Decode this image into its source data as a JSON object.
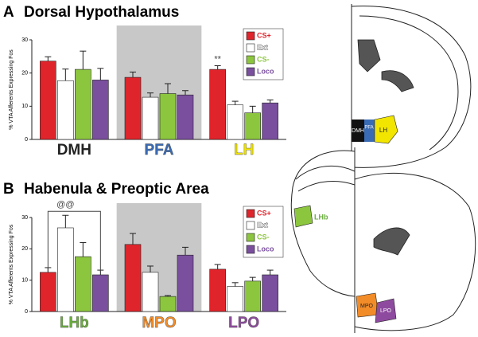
{
  "chart_data": [
    {
      "type": "bar",
      "panel": "A",
      "title": "Dorsal Hypothalamus",
      "ylabel": "% VTA Afferents Expressing Fos",
      "ylim": [
        0,
        30
      ],
      "yticks": [
        0,
        10,
        20,
        30
      ],
      "categories": [
        "DMH",
        "PFA",
        "LH"
      ],
      "category_colors": [
        "#222222",
        "#3a6bb5",
        "#f2e600"
      ],
      "shaded_category": 1,
      "series": [
        {
          "name": "CS+",
          "color": "#e0242b",
          "values": [
            23.6,
            18.7,
            21.1
          ],
          "errors": [
            1.3,
            1.6,
            1.1
          ]
        },
        {
          "name": "Ext",
          "color": "#ffffff",
          "values": [
            17.7,
            12.7,
            10.4
          ],
          "errors": [
            3.5,
            1.3,
            1.1
          ]
        },
        {
          "name": "CS-",
          "color": "#8cc63e",
          "values": [
            21.1,
            13.8,
            8.0
          ],
          "errors": [
            5.5,
            3.0,
            2.0
          ]
        },
        {
          "name": "Loco",
          "color": "#7a4f9e",
          "values": [
            17.9,
            13.4,
            11.0
          ],
          "errors": [
            3.5,
            1.3,
            0.9
          ]
        }
      ],
      "annotations": [
        {
          "text": "**",
          "category": 2,
          "series": 0
        }
      ]
    },
    {
      "type": "bar",
      "panel": "B",
      "title": "Habenula & Preoptic Area",
      "ylabel": "% VTA Afferents Expressing Fos",
      "ylim": [
        0,
        30
      ],
      "yticks": [
        0,
        10,
        20,
        30
      ],
      "categories": [
        "LHb",
        "MPO",
        "LPO"
      ],
      "category_colors": [
        "#6aad3d",
        "#f28c28",
        "#8e4a9e"
      ],
      "shaded_category": 1,
      "series": [
        {
          "name": "CS+",
          "color": "#e0242b",
          "values": [
            12.5,
            21.4,
            13.5
          ],
          "errors": [
            1.5,
            3.5,
            1.5
          ]
        },
        {
          "name": "Ext",
          "color": "#ffffff",
          "values": [
            26.7,
            12.5,
            8.0
          ],
          "errors": [
            4.0,
            2.0,
            1.2
          ]
        },
        {
          "name": "CS-",
          "color": "#8cc63e",
          "values": [
            17.5,
            4.8,
            9.7
          ],
          "errors": [
            4.5,
            0.3,
            1.2
          ]
        },
        {
          "name": "Loco",
          "color": "#7a4f9e",
          "values": [
            11.7,
            18.0,
            11.7
          ],
          "errors": [
            1.5,
            2.5,
            1.5
          ]
        }
      ],
      "annotations": [
        {
          "text": "@@",
          "category": 0,
          "series": 1
        }
      ]
    }
  ],
  "diagram": {
    "labels": [
      "DMH",
      "PFA",
      "LH",
      "LHb",
      "MPO",
      "LPO"
    ]
  }
}
